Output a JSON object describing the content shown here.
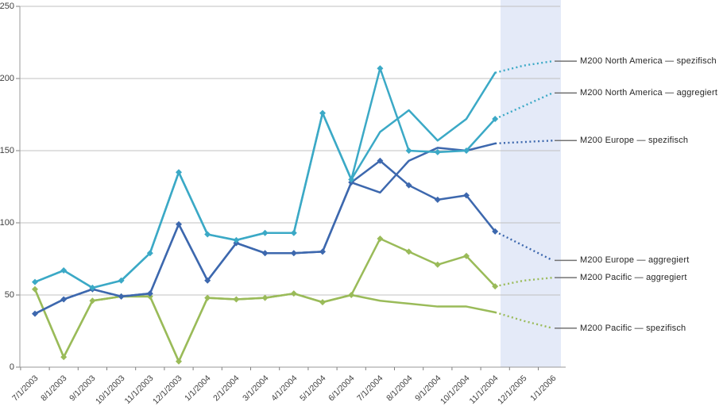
{
  "chart_data": {
    "type": "line",
    "title": "",
    "xlabel": "",
    "ylabel": "",
    "categories": [
      "7/1/2003",
      "8/1/2003",
      "9/1/2003",
      "10/1/2003",
      "11/1/2003",
      "12/1/2003",
      "1/1/2004",
      "2/1/2004",
      "3/1/2004",
      "4/1/2004",
      "5/1/2004",
      "6/1/2004",
      "7/1/2004",
      "8/1/2004",
      "9/1/2004",
      "10/1/2004",
      "11/1/2004",
      "12/1/2005",
      "1/1/2006"
    ],
    "ylim": [
      0,
      250
    ],
    "yticks": [
      0,
      50,
      100,
      150,
      200,
      250
    ],
    "grid": true,
    "legend_position": "right-callouts",
    "forecast": {
      "start_index": 16,
      "style": "dotted",
      "band_color": "#E4EAF8"
    },
    "series": [
      {
        "name": "M200 Pacific — spezifisch",
        "color": "#9ABB59",
        "markers": false,
        "values": [
          54,
          7,
          46,
          49,
          49,
          4,
          48,
          47,
          48,
          51,
          45,
          50,
          46,
          44,
          42,
          42,
          38,
          32,
          27
        ]
      },
      {
        "name": "M200 Pacific — aggregiert",
        "color": "#9ABB59",
        "markers": true,
        "values": [
          54,
          7,
          46,
          49,
          49,
          4,
          48,
          47,
          48,
          51,
          45,
          50,
          89,
          80,
          71,
          77,
          56,
          60,
          62
        ]
      },
      {
        "name": "M200 Europe — spezifisch",
        "color": "#3D68AE",
        "markers": false,
        "values": [
          37,
          47,
          54,
          49,
          51,
          99,
          60,
          86,
          79,
          79,
          80,
          128,
          121,
          143,
          152,
          150,
          155,
          156,
          157
        ]
      },
      {
        "name": "M200 Europe — aggregiert",
        "color": "#3D68AE",
        "markers": true,
        "values": [
          37,
          47,
          54,
          49,
          51,
          99,
          60,
          86,
          79,
          79,
          80,
          128,
          143,
          126,
          116,
          119,
          94,
          84,
          74
        ]
      },
      {
        "name": "M200 North America — spezifisch",
        "color": "#3BA9C6",
        "markers": false,
        "values": [
          59,
          67,
          55,
          60,
          79,
          135,
          92,
          88,
          93,
          93,
          176,
          130,
          163,
          178,
          157,
          172,
          204,
          209,
          212
        ]
      },
      {
        "name": "M200 North America — aggregiert",
        "color": "#3BA9C6",
        "markers": true,
        "values": [
          59,
          67,
          55,
          60,
          79,
          135,
          92,
          88,
          93,
          93,
          176,
          130,
          207,
          150,
          149,
          150,
          172,
          181,
          190
        ]
      }
    ]
  },
  "axis_style": {
    "grid_color": "#C0C0C0",
    "axis_color": "#9A9A9A",
    "tick_color": "#808080",
    "label_color": "#3F3F3F"
  },
  "callout_style": {
    "leader_color": "#737373",
    "text_color": "#262626"
  }
}
